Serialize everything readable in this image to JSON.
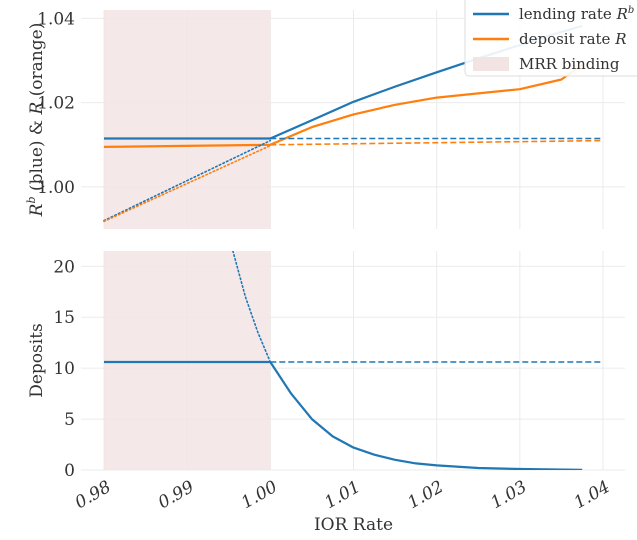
{
  "chart_data": [
    {
      "type": "line",
      "ylabel_parts": [
        "R",
        "b",
        " (blue) & ",
        "R",
        " (orange)"
      ],
      "xlim": [
        0.98,
        1.04
      ],
      "ylim": [
        0.99,
        1.042
      ],
      "yticks": [
        1.0,
        1.02,
        1.04
      ],
      "ytick_labels": [
        "1.00",
        "1.02",
        "1.04"
      ],
      "grid": true,
      "shaded_region": {
        "x": [
          0.98,
          1.0
        ],
        "label": "MRR binding",
        "color": "#f3e4e4"
      },
      "legend_position": "top-right",
      "legend": [
        {
          "label": "lending rate ",
          "math": "R",
          "sup": "b",
          "color": "#1f77b4",
          "kind": "line"
        },
        {
          "label": "deposit rate ",
          "math": "R",
          "sup": "",
          "color": "#ff7f0e",
          "kind": "line"
        },
        {
          "label": "MRR binding",
          "math": "",
          "sup": "",
          "color": "#f3e4e4",
          "kind": "patch"
        }
      ],
      "series": [
        {
          "name": "lending rate",
          "style": "solid",
          "color": "#1f77b4",
          "x": [
            0.98,
            1.0,
            1.005,
            1.01,
            1.015,
            1.02,
            1.025,
            1.03,
            1.035,
            1.0375
          ],
          "y": [
            1.0115,
            1.0115,
            1.0158,
            1.0202,
            1.0238,
            1.0272,
            1.0305,
            1.0337,
            1.0368,
            1.0382
          ]
        },
        {
          "name": "deposit rate",
          "style": "solid",
          "color": "#ff7f0e",
          "x": [
            0.98,
            1.0,
            1.005,
            1.01,
            1.015,
            1.02,
            1.025,
            1.03,
            1.035,
            1.0375
          ],
          "y": [
            1.0095,
            1.01,
            1.0142,
            1.0172,
            1.0195,
            1.0212,
            1.0222,
            1.0232,
            1.0255,
            1.029
          ]
        },
        {
          "name": "lending rate (dashed)",
          "style": "dashed",
          "color": "#1f77b4",
          "x": [
            1.0,
            1.04
          ],
          "y": [
            1.0115,
            1.0115
          ]
        },
        {
          "name": "deposit rate (dashed)",
          "style": "dashed",
          "color": "#ff7f0e",
          "x": [
            1.0,
            1.04
          ],
          "y": [
            1.01,
            1.011
          ]
        },
        {
          "name": "lending rate (dotted)",
          "style": "dotted",
          "color": "#1f77b4",
          "x": [
            0.98,
            1.0
          ],
          "y": [
            0.992,
            1.011
          ]
        },
        {
          "name": "deposit rate (dotted)",
          "style": "dotted",
          "color": "#ff7f0e",
          "x": [
            0.98,
            1.0
          ],
          "y": [
            0.9918,
            1.0098
          ]
        }
      ]
    },
    {
      "type": "line",
      "ylabel": "Deposits",
      "xlabel": "IOR Rate",
      "xlim": [
        0.98,
        1.04
      ],
      "ylim": [
        0,
        21.5
      ],
      "xticks": [
        0.98,
        0.99,
        1.0,
        1.01,
        1.02,
        1.03,
        1.04
      ],
      "xtick_labels": [
        "0.98",
        "0.99",
        "1.00",
        "1.01",
        "1.02",
        "1.03",
        "1.04"
      ],
      "yticks": [
        0,
        5,
        10,
        15,
        20
      ],
      "ytick_labels": [
        "0",
        "5",
        "10",
        "15",
        "20"
      ],
      "grid": true,
      "shaded_region": {
        "x": [
          0.98,
          1.0
        ],
        "color": "#f3e4e4"
      },
      "series": [
        {
          "name": "deposits",
          "style": "solid",
          "color": "#1f77b4",
          "x": [
            0.98,
            1.0,
            1.0025,
            1.005,
            1.0075,
            1.01,
            1.0125,
            1.015,
            1.0175,
            1.02,
            1.025,
            1.03,
            1.0375
          ],
          "y": [
            10.6,
            10.6,
            7.5,
            5.0,
            3.3,
            2.2,
            1.5,
            1.0,
            0.65,
            0.45,
            0.2,
            0.1,
            0.02
          ]
        },
        {
          "name": "deposits (dashed)",
          "style": "dashed",
          "color": "#1f77b4",
          "x": [
            1.0,
            1.04
          ],
          "y": [
            10.6,
            10.6
          ]
        },
        {
          "name": "deposits (dotted)",
          "style": "dotted",
          "color": "#1f77b4",
          "x": [
            0.9955,
            0.997,
            0.9985,
            1.0
          ],
          "y": [
            21.5,
            17.0,
            13.5,
            10.6
          ]
        }
      ]
    }
  ]
}
